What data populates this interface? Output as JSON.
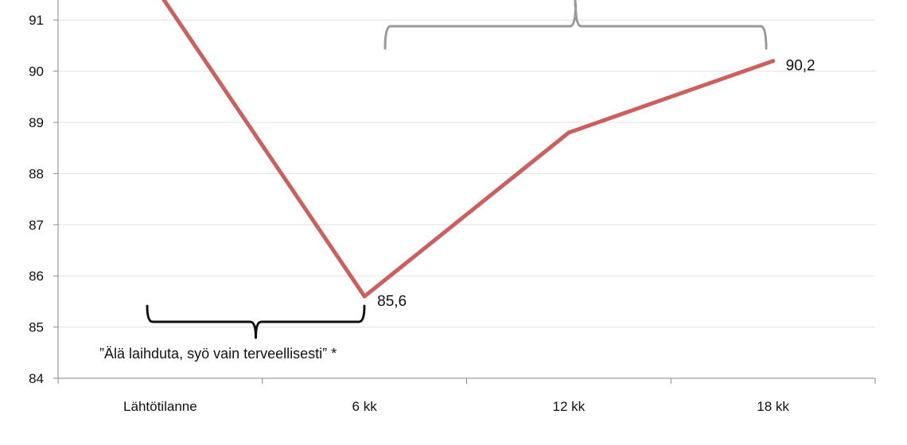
{
  "chart_data": {
    "type": "line",
    "categories": [
      "Lähtötilanne",
      "6 kk",
      "12 kk",
      "18 kk"
    ],
    "series": [
      {
        "values": [
          91.5,
          85.6,
          88.8,
          90.2
        ],
        "color": "#cd5f5e"
      }
    ],
    "data_labels": [
      {
        "index": 1,
        "text": "85,6"
      },
      {
        "index": 3,
        "text": "90,2"
      }
    ],
    "yticks": [
      "84",
      "85",
      "86",
      "87",
      "88",
      "89",
      "90",
      "91"
    ],
    "ylim": [
      84,
      91.4
    ],
    "grid": true,
    "annotations": [
      {
        "type": "brace",
        "color": "#111111",
        "text": "”Älä laihduta, syö vain terveellisesti” *"
      },
      {
        "type": "brace",
        "color": "#9a9a9a",
        "text": ""
      }
    ]
  }
}
